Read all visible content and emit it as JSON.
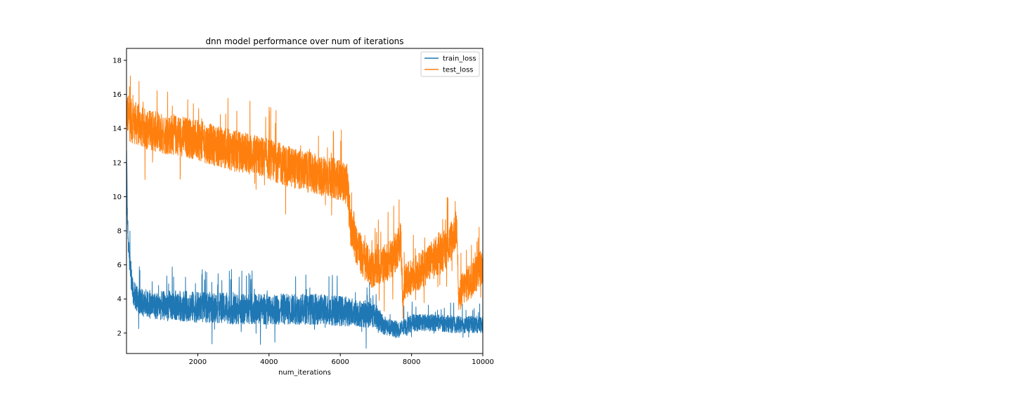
{
  "chart_data": {
    "type": "line",
    "title": "dnn model performance over num of iterations",
    "xlabel": "num_iterations",
    "ylabel": "",
    "xlim": [
      0,
      10000
    ],
    "ylim": [
      0.8,
      18.7
    ],
    "xticks": [
      2000,
      4000,
      6000,
      8000,
      10000
    ],
    "yticks": [
      2,
      4,
      6,
      8,
      10,
      12,
      14,
      16,
      18
    ],
    "grid": false,
    "legend_position": "top-right",
    "series": [
      {
        "name": "train_loss",
        "color": "#1f77b4",
        "x": [
          0,
          20,
          50,
          100,
          150,
          200,
          300,
          500,
          800,
          1200,
          1600,
          2000,
          2500,
          3000,
          3500,
          4000,
          4500,
          5000,
          5500,
          6000,
          6400,
          6800,
          7000,
          7200,
          7400,
          7600,
          7800,
          8000,
          8400,
          8800,
          9200,
          9600,
          10000
        ],
        "mean": [
          12.8,
          9.5,
          7.5,
          6.0,
          5.0,
          4.3,
          4.0,
          3.7,
          3.6,
          3.6,
          3.6,
          3.5,
          3.5,
          3.4,
          3.4,
          3.4,
          3.4,
          3.4,
          3.4,
          3.3,
          3.2,
          3.1,
          3.0,
          2.5,
          2.3,
          2.2,
          2.3,
          2.6,
          2.6,
          2.6,
          2.5,
          2.5,
          2.5
        ],
        "amp": [
          0.6,
          0.8,
          0.8,
          0.8,
          0.8,
          0.8,
          0.8,
          0.8,
          0.8,
          0.9,
          0.9,
          0.9,
          0.9,
          0.9,
          0.9,
          0.9,
          0.9,
          0.9,
          0.9,
          0.9,
          0.8,
          0.8,
          0.7,
          0.6,
          0.5,
          0.5,
          0.5,
          0.5,
          0.5,
          0.5,
          0.5,
          0.5,
          0.5
        ]
      },
      {
        "name": "test_loss",
        "color": "#ff7f0e",
        "x": [
          0,
          100,
          500,
          1000,
          1500,
          2000,
          2500,
          3000,
          3500,
          4000,
          4500,
          5000,
          5500,
          6000,
          6200,
          6300,
          6600,
          6900,
          7200,
          7500,
          7700,
          7760,
          7800,
          8200,
          8600,
          9000,
          9280,
          9320,
          9400,
          9700,
          10000
        ],
        "mean": [
          15.0,
          14.5,
          14.0,
          13.7,
          13.6,
          13.3,
          13.0,
          12.7,
          12.5,
          12.2,
          11.8,
          11.5,
          11.2,
          11.0,
          10.7,
          8.0,
          6.5,
          5.7,
          6.0,
          6.5,
          7.5,
          3.5,
          5.0,
          5.6,
          6.3,
          7.0,
          8.2,
          3.8,
          4.5,
          5.2,
          6.0
        ],
        "amp": [
          1.2,
          1.3,
          1.2,
          1.2,
          1.2,
          1.2,
          1.2,
          1.2,
          1.2,
          1.2,
          1.2,
          1.2,
          1.2,
          1.2,
          1.2,
          1.2,
          1.2,
          1.1,
          1.1,
          1.2,
          1.2,
          0.8,
          1.0,
          1.1,
          1.2,
          1.2,
          1.1,
          0.8,
          1.0,
          1.1,
          1.1
        ]
      }
    ]
  }
}
